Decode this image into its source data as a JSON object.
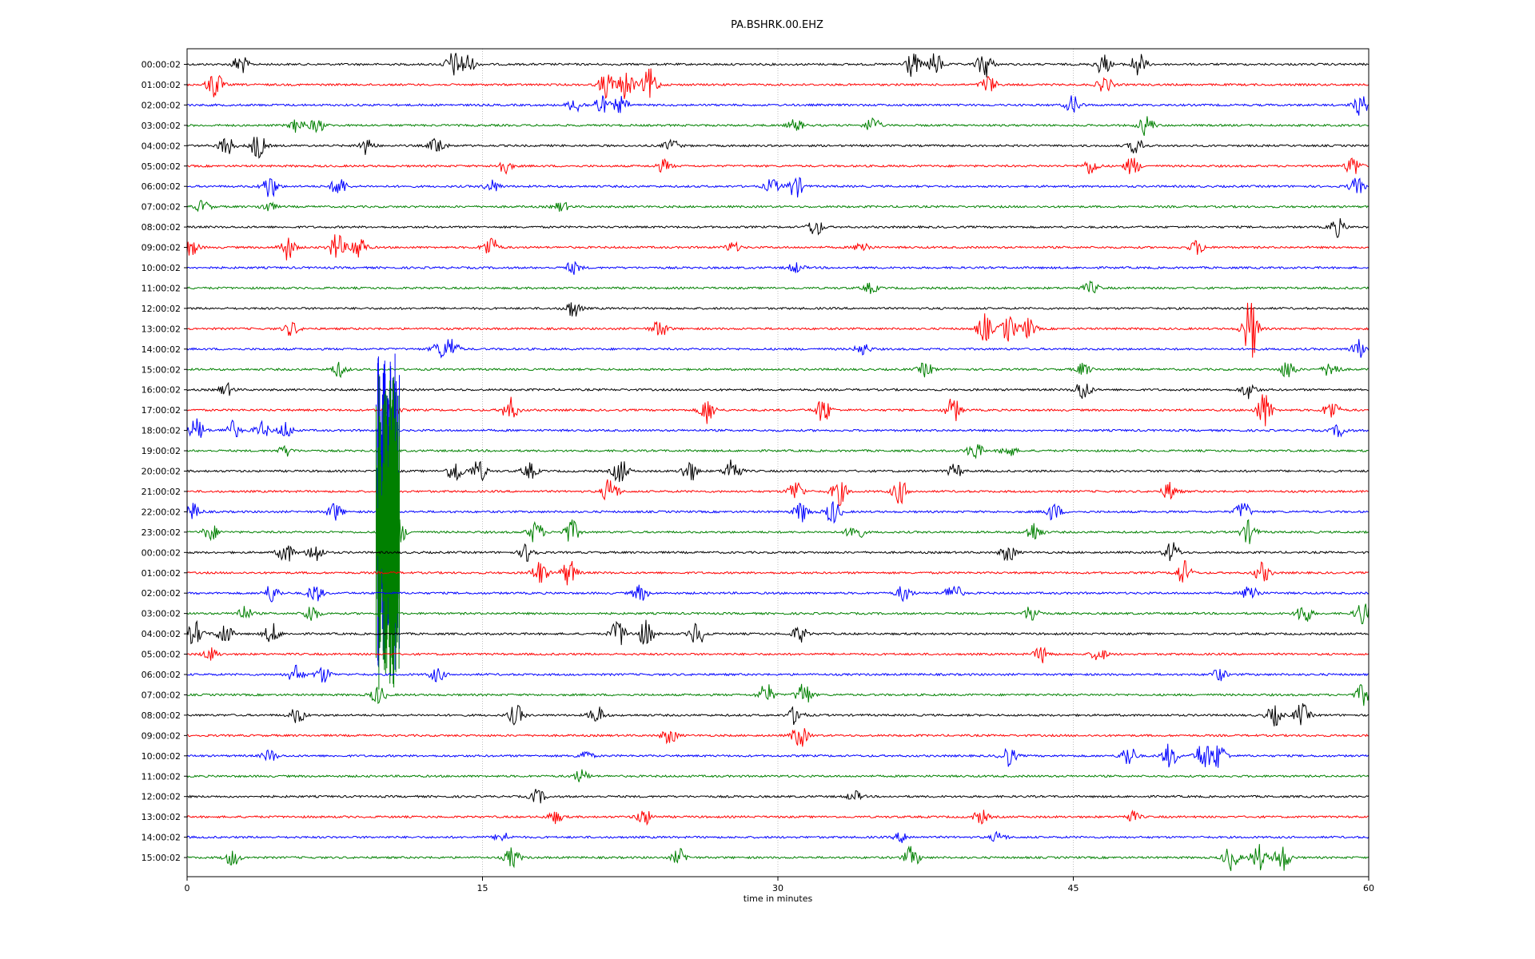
{
  "chart_data": {
    "type": "line",
    "title": "PA.BSHRK.00.EHZ",
    "xlabel": "time in minutes",
    "ylabel": "",
    "xlim": [
      0,
      60
    ],
    "x_ticks": [
      "0",
      "15",
      "30",
      "45",
      "60"
    ],
    "x_tick_values": [
      0,
      15,
      30,
      45,
      60
    ],
    "grid": "vertical dotted lines at 15, 30, 45",
    "row_colors": [
      "#000000",
      "#ff0000",
      "#0000ff",
      "#008000"
    ],
    "rows": [
      "00:00:02",
      "01:00:02",
      "02:00:02",
      "03:00:02",
      "04:00:02",
      "05:00:02",
      "06:00:02",
      "07:00:02",
      "08:00:02",
      "09:00:02",
      "10:00:02",
      "11:00:02",
      "12:00:02",
      "13:00:02",
      "14:00:02",
      "15:00:02",
      "16:00:02",
      "17:00:02",
      "18:00:02",
      "19:00:02",
      "20:00:02",
      "21:00:02",
      "22:00:02",
      "23:00:02",
      "00:00:02",
      "01:00:02",
      "02:00:02",
      "03:00:02",
      "04:00:02",
      "05:00:02",
      "06:00:02",
      "07:00:02",
      "08:00:02",
      "09:00:02",
      "10:00:02",
      "11:00:02",
      "12:00:02",
      "13:00:02",
      "14:00:02",
      "15:00:02"
    ],
    "events_minutes": [
      [
        [
          2.7,
          1.0
        ],
        [
          13.5,
          1.2
        ],
        [
          14.2,
          1.1
        ],
        [
          36.8,
          1.3
        ],
        [
          38.0,
          1.1
        ],
        [
          40.5,
          1.4
        ],
        [
          46.5,
          1.0
        ],
        [
          48.3,
          1.2
        ]
      ],
      [
        [
          1.4,
          1.4
        ],
        [
          21.3,
          1.3
        ],
        [
          22.3,
          1.5
        ],
        [
          23.5,
          1.6
        ],
        [
          40.7,
          0.9
        ],
        [
          46.6,
          0.8
        ]
      ],
      [
        [
          19.7,
          0.7
        ],
        [
          21.0,
          0.9
        ],
        [
          22.0,
          0.8
        ],
        [
          45.0,
          0.9
        ],
        [
          59.6,
          1.0
        ]
      ],
      [
        [
          5.6,
          0.7
        ],
        [
          6.6,
          0.7
        ],
        [
          30.9,
          0.6
        ],
        [
          34.8,
          0.8
        ],
        [
          48.7,
          1.0
        ]
      ],
      [
        [
          2.0,
          1.0
        ],
        [
          3.6,
          1.3
        ],
        [
          9.1,
          0.8
        ],
        [
          12.7,
          0.9
        ],
        [
          24.6,
          0.6
        ],
        [
          48.2,
          0.8
        ]
      ],
      [
        [
          16.1,
          0.7
        ],
        [
          24.2,
          0.6
        ],
        [
          45.9,
          0.8
        ],
        [
          48.0,
          0.9
        ],
        [
          59.2,
          1.0
        ]
      ],
      [
        [
          4.2,
          1.2
        ],
        [
          7.7,
          1.0
        ],
        [
          15.5,
          0.6
        ],
        [
          29.7,
          0.7
        ],
        [
          30.9,
          1.1
        ],
        [
          59.4,
          0.8
        ]
      ],
      [
        [
          0.8,
          0.6
        ],
        [
          4.1,
          0.5
        ],
        [
          19.0,
          0.5
        ]
      ],
      [
        [
          31.9,
          0.9
        ],
        [
          58.4,
          0.9
        ]
      ],
      [
        [
          0.2,
          0.8
        ],
        [
          5.1,
          1.2
        ],
        [
          7.6,
          1.4
        ],
        [
          8.7,
          1.3
        ],
        [
          15.4,
          1.1
        ],
        [
          27.7,
          0.5
        ],
        [
          34.3,
          0.6
        ],
        [
          51.3,
          0.7
        ]
      ],
      [
        [
          19.6,
          0.6
        ],
        [
          30.9,
          0.5
        ]
      ],
      [
        [
          34.7,
          0.5
        ],
        [
          45.9,
          0.6
        ]
      ],
      [
        [
          19.6,
          0.9
        ]
      ],
      [
        [
          5.3,
          0.7
        ],
        [
          24.0,
          0.9
        ],
        [
          40.5,
          1.4
        ],
        [
          41.7,
          1.3
        ],
        [
          42.7,
          1.0
        ],
        [
          54.0,
          3.2
        ]
      ],
      [
        [
          12.8,
          0.7
        ],
        [
          13.4,
          1.1
        ],
        [
          34.3,
          0.6
        ],
        [
          59.5,
          0.9
        ]
      ],
      [
        [
          7.7,
          0.7
        ],
        [
          37.5,
          0.7
        ],
        [
          45.5,
          0.6
        ],
        [
          55.9,
          0.9
        ],
        [
          58.1,
          0.9
        ]
      ],
      [
        [
          2.0,
          0.6
        ],
        [
          45.5,
          1.1
        ],
        [
          53.9,
          0.8
        ]
      ],
      [
        [
          10.4,
          0.9
        ],
        [
          16.4,
          1.2
        ],
        [
          26.4,
          1.3
        ],
        [
          32.3,
          1.3
        ],
        [
          38.9,
          1.2
        ],
        [
          54.7,
          1.8
        ],
        [
          58.1,
          1.0
        ]
      ],
      [
        [
          0.5,
          1.2
        ],
        [
          2.3,
          0.9
        ],
        [
          3.8,
          0.8
        ],
        [
          5.0,
          0.8
        ],
        [
          58.5,
          0.6
        ]
      ],
      [
        [
          5.0,
          0.5
        ],
        [
          40.0,
          0.9
        ],
        [
          41.7,
          0.6
        ]
      ],
      [
        [
          13.6,
          1.2
        ],
        [
          14.8,
          1.1
        ],
        [
          17.4,
          0.8
        ],
        [
          22.0,
          1.3
        ],
        [
          25.5,
          1.1
        ],
        [
          27.7,
          1.4
        ],
        [
          39.0,
          0.7
        ]
      ],
      [
        [
          10.3,
          1.3
        ],
        [
          21.5,
          1.4
        ],
        [
          30.9,
          1.1
        ],
        [
          33.1,
          1.3
        ],
        [
          36.2,
          1.2
        ],
        [
          49.9,
          0.9
        ]
      ],
      [
        [
          0.3,
          0.8
        ],
        [
          7.5,
          0.9
        ],
        [
          31.2,
          1.0
        ],
        [
          32.8,
          1.2
        ],
        [
          44.0,
          0.9
        ],
        [
          53.6,
          1.0
        ]
      ],
      [
        [
          1.2,
          0.8
        ],
        [
          10.7,
          1.5
        ],
        [
          17.7,
          1.1
        ],
        [
          19.5,
          1.2
        ],
        [
          33.9,
          1.1
        ],
        [
          43.0,
          1.0
        ],
        [
          53.9,
          1.1
        ]
      ],
      [
        [
          5.0,
          1.1
        ],
        [
          6.5,
          1.0
        ],
        [
          17.3,
          0.9
        ],
        [
          41.7,
          0.9
        ],
        [
          50.0,
          1.0
        ]
      ],
      [
        [
          17.9,
          1.2
        ],
        [
          19.4,
          1.3
        ],
        [
          50.6,
          1.2
        ],
        [
          54.6,
          1.0
        ]
      ],
      [
        [
          4.3,
          0.9
        ],
        [
          6.5,
          0.9
        ],
        [
          23.0,
          0.8
        ],
        [
          36.4,
          0.8
        ],
        [
          38.9,
          1.1
        ],
        [
          54.0,
          1.0
        ]
      ],
      [
        [
          2.9,
          0.7
        ],
        [
          6.3,
          0.9
        ],
        [
          42.9,
          0.9
        ],
        [
          56.7,
          1.1
        ],
        [
          59.7,
          1.2
        ]
      ],
      [
        [
          0.4,
          1.2
        ],
        [
          1.9,
          1.1
        ],
        [
          4.3,
          1.0
        ],
        [
          21.9,
          1.4
        ],
        [
          23.3,
          1.3
        ],
        [
          25.9,
          1.2
        ],
        [
          31.1,
          0.8
        ]
      ],
      [
        [
          1.2,
          0.6
        ],
        [
          43.4,
          0.8
        ],
        [
          46.3,
          0.7
        ]
      ],
      [
        [
          5.5,
          0.9
        ],
        [
          6.9,
          0.8
        ],
        [
          12.7,
          0.7
        ],
        [
          52.4,
          0.6
        ]
      ],
      [
        [
          9.7,
          0.9
        ],
        [
          29.4,
          1.1
        ],
        [
          31.3,
          1.3
        ],
        [
          59.7,
          1.0
        ]
      ],
      [
        [
          5.6,
          0.8
        ],
        [
          16.7,
          1.0
        ],
        [
          20.8,
          0.9
        ],
        [
          30.9,
          0.9
        ],
        [
          55.2,
          1.0
        ],
        [
          56.6,
          1.1
        ]
      ],
      [
        [
          24.5,
          0.8
        ],
        [
          31.1,
          1.2
        ]
      ],
      [
        [
          4.2,
          0.6
        ],
        [
          20.2,
          0.5
        ],
        [
          41.7,
          1.0
        ],
        [
          47.8,
          1.1
        ],
        [
          49.9,
          1.2
        ],
        [
          51.6,
          1.5
        ],
        [
          52.4,
          1.3
        ]
      ],
      [
        [
          20.0,
          0.6
        ]
      ],
      [
        [
          17.8,
          0.7
        ],
        [
          33.9,
          0.5
        ]
      ],
      [
        [
          18.7,
          0.6
        ],
        [
          23.2,
          0.8
        ],
        [
          40.3,
          0.7
        ],
        [
          48.0,
          0.5
        ]
      ],
      [
        [
          16.0,
          0.5
        ],
        [
          36.3,
          0.5
        ],
        [
          41.2,
          0.5
        ]
      ],
      [
        [
          2.3,
          0.8
        ],
        [
          16.5,
          1.0
        ],
        [
          25.0,
          0.8
        ],
        [
          36.8,
          1.1
        ],
        [
          53.0,
          1.2
        ],
        [
          54.4,
          1.3
        ],
        [
          55.6,
          1.4
        ]
      ]
    ]
  }
}
